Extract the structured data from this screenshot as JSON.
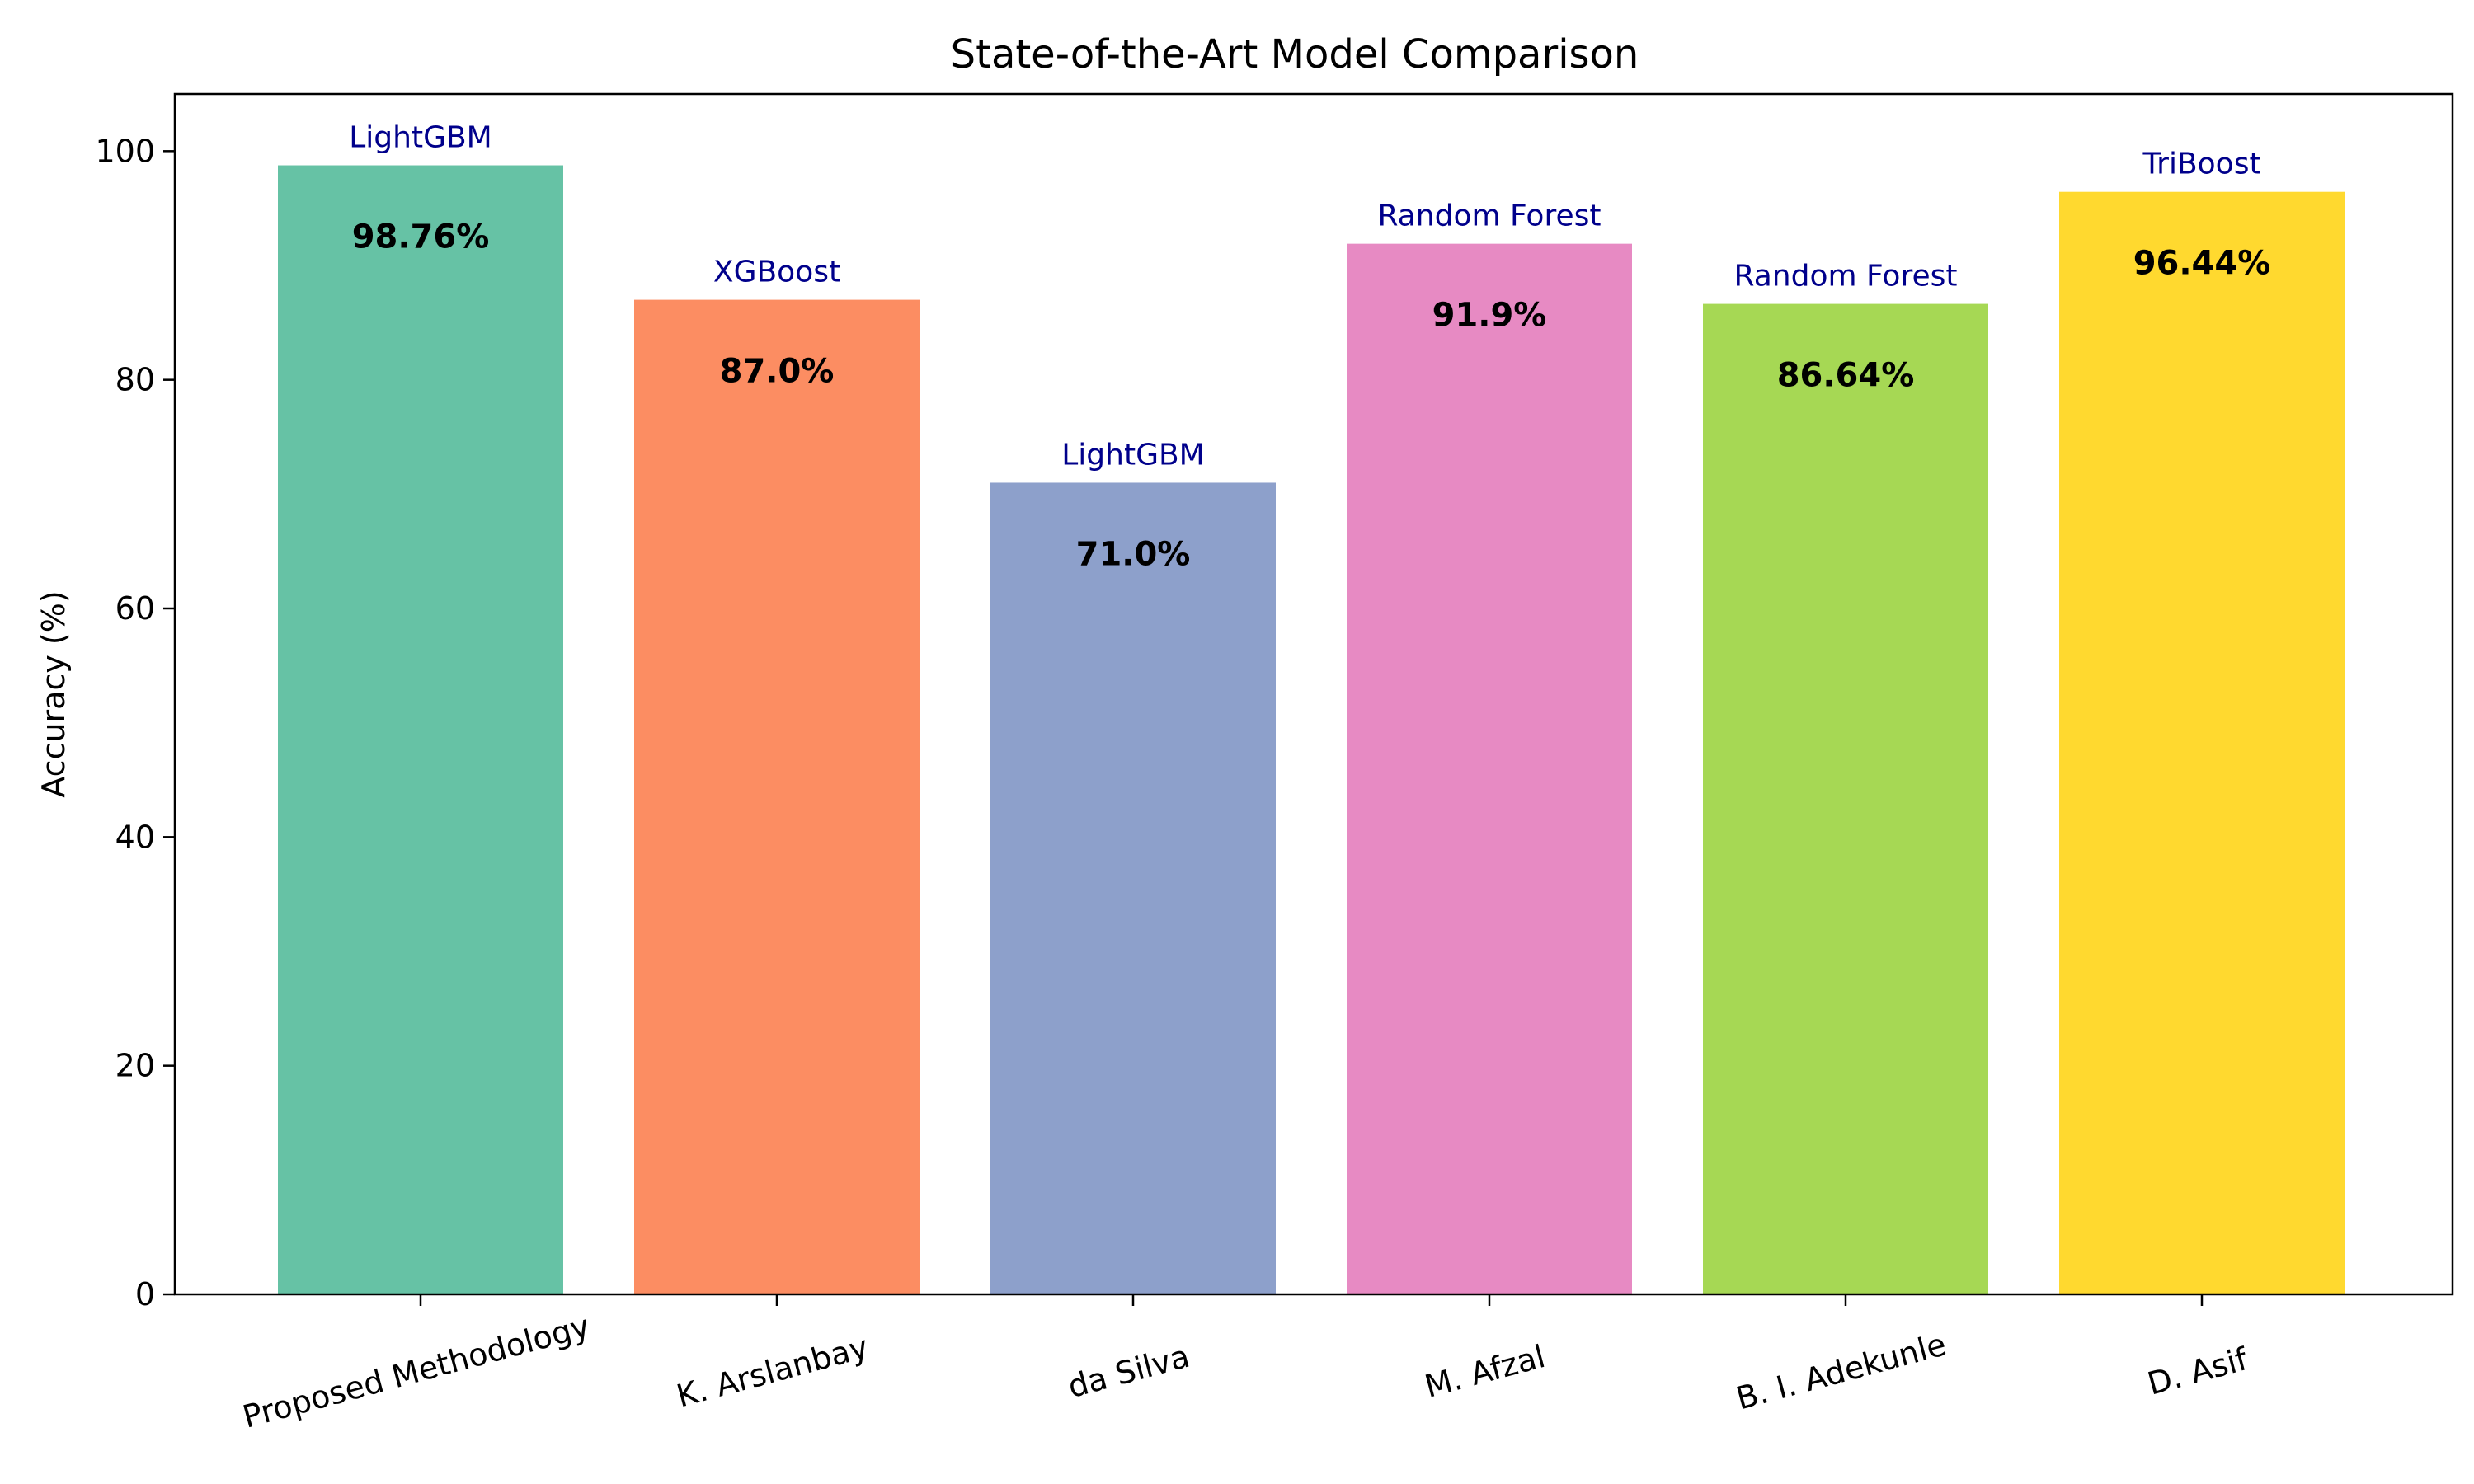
{
  "chart_data": {
    "type": "bar",
    "title": "State-of-the-Art Model Comparison",
    "xlabel": "",
    "ylabel": "Accuracy (%)",
    "ylim": [
      0,
      105
    ],
    "yticks": [
      0,
      20,
      40,
      60,
      80,
      100
    ],
    "ytick_labels": [
      "0",
      "20",
      "40",
      "60",
      "80",
      "100"
    ],
    "categories": [
      "Proposed Methodology",
      "K. Arslanbay",
      "da Silva",
      "M. Afzal",
      "B. I. Adekunle",
      "D. Asif"
    ],
    "values": [
      98.76,
      87.0,
      71.0,
      91.9,
      86.64,
      96.44
    ],
    "value_labels": [
      "98.76%",
      "87.0%",
      "71.0%",
      "91.9%",
      "86.64%",
      "96.44%"
    ],
    "models": [
      "LightGBM",
      "XGBoost",
      "LightGBM",
      "Random Forest",
      "Random Forest",
      "TriBoost"
    ],
    "colors": [
      "#66c2a5",
      "#fc8d62",
      "#8da0cb",
      "#e78ac3",
      "#a6d854",
      "#ffd92f"
    ],
    "model_label_color": "#00008b",
    "grid": false,
    "legend": "none"
  }
}
